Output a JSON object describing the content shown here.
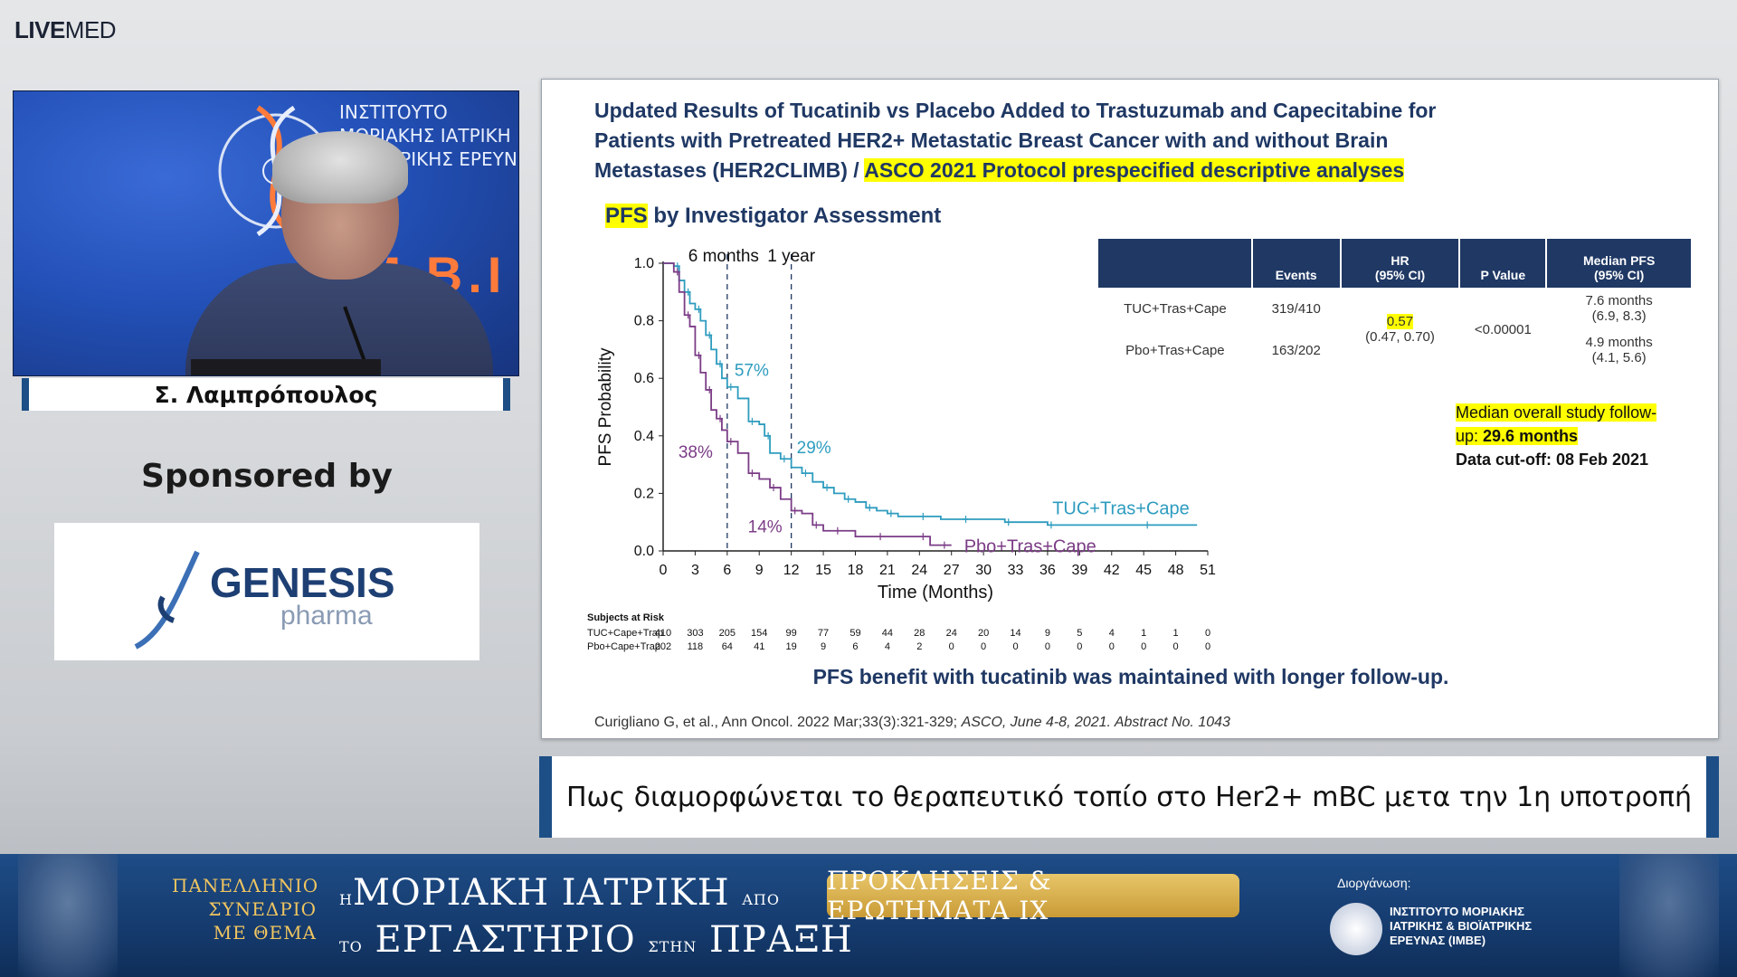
{
  "brand": {
    "bold": "LIVE",
    "light": "MED"
  },
  "speaker": {
    "name": "Σ. Λαμπρόπουλος",
    "backdrop_lines": [
      "ΙΝΣΤΙΤΟΥΤΟ",
      "ΜΟΡΙΑΚΗΣ ΙΑΤΡΙΚΗ",
      "ΒΙΟΪΑΤΡΙΚΗΣ ΕΡΕΥΝ"
    ],
    "backdrop_big": ".M.B.I"
  },
  "sponsor": {
    "label": "Sponsored by",
    "name": "GENESIS",
    "sub": "pharma"
  },
  "slide": {
    "title_line1": "Updated Results of Tucatinib vs Placebo Added to Trastuzumab and Capecitabine for",
    "title_line2": "Patients with Pretreated HER2+ Metastatic Breast Cancer with and without Brain",
    "title_line3_plain": "Metastases (HER2CLIMB) / ",
    "title_line3_highlight": "ASCO 2021 Protocol prespecified descriptive analyses",
    "pfs_highlight": "PFS",
    "pfs_rest": " by Investigator Assessment",
    "table": {
      "headers": [
        "",
        "Events",
        "HR\n(95% CI)",
        "P Value",
        "Median PFS\n(95% CI)"
      ],
      "h_events": "Events",
      "h_hr1": "HR",
      "h_hr2": "(95% CI)",
      "h_p": "P Value",
      "h_med1": "Median PFS",
      "h_med2": "(95% CI)",
      "row1_arm": "TUC+Tras+Cape",
      "row1_events": "319/410",
      "row2_arm": "Pbo+Tras+Cape",
      "row2_events": "163/202",
      "hr": "0.57",
      "hr_ci": "(0.47, 0.70)",
      "p": "<0.00001",
      "row1_med": "7.6 months",
      "row1_med_ci": "(6.9, 8.3)",
      "row2_med": "4.9 months",
      "row2_med_ci": "(4.1, 5.6)"
    },
    "note_hl1": "Median overall study follow-",
    "note_hl2": "up: ",
    "note_hl2_bold": "29.6 months",
    "note_line3": "Data cut-off: 08 Feb 2021",
    "benefit": "PFS benefit with tucatinib was maintained with longer follow-up.",
    "cite_plain": "Curigliano G, et al., Ann Oncol. 2022 Mar;33(3):321-329; ",
    "cite_italic": "ASCO, June 4-8, 2021. Abstract No. 1043"
  },
  "chart_data": {
    "type": "line",
    "xlabel": "Time (Months)",
    "ylabel": "PFS Probability",
    "xlim": [
      0,
      51
    ],
    "ylim": [
      0,
      1.0
    ],
    "xticks": [
      0,
      3,
      6,
      9,
      12,
      15,
      18,
      21,
      24,
      27,
      30,
      33,
      36,
      39,
      42,
      45,
      48,
      51
    ],
    "yticks": [
      0.0,
      0.2,
      0.4,
      0.6,
      0.8,
      1.0
    ],
    "reference_lines": [
      {
        "x": 6,
        "label": "6 months"
      },
      {
        "x": 12,
        "label": "1 year"
      }
    ],
    "annotations": [
      {
        "text": "57%",
        "series": "TUC+Tras+Cape"
      },
      {
        "text": "29%",
        "series": "TUC+Tras+Cape"
      },
      {
        "text": "38%",
        "series": "Pbo+Tras+Cape"
      },
      {
        "text": "14%",
        "series": "Pbo+Tras+Cape"
      }
    ],
    "series": [
      {
        "name": "TUC+Tras+Cape",
        "color": "#2e9cbf",
        "x": [
          0,
          1.0,
          1.5,
          2,
          2.5,
          3,
          3.5,
          4,
          4.5,
          5,
          5.5,
          6,
          7,
          8,
          9,
          9.5,
          10,
          11,
          12,
          13,
          14,
          15,
          16,
          17,
          18,
          19,
          20,
          21,
          22,
          24,
          26,
          28,
          30,
          32,
          34,
          36,
          40,
          45,
          50
        ],
        "y": [
          1.0,
          0.99,
          0.94,
          0.9,
          0.86,
          0.84,
          0.8,
          0.75,
          0.7,
          0.65,
          0.6,
          0.57,
          0.53,
          0.45,
          0.44,
          0.4,
          0.34,
          0.32,
          0.29,
          0.27,
          0.24,
          0.22,
          0.2,
          0.18,
          0.17,
          0.15,
          0.14,
          0.13,
          0.12,
          0.12,
          0.11,
          0.11,
          0.11,
          0.1,
          0.1,
          0.09,
          0.09,
          0.09,
          0.09
        ]
      },
      {
        "name": "Pbo+Tras+Cape",
        "color": "#7b3c86",
        "x": [
          0,
          1.0,
          1.5,
          2,
          2.5,
          3,
          3.5,
          4,
          4.5,
          5,
          5.5,
          6,
          7,
          8,
          9,
          10,
          11,
          12,
          13,
          14,
          15,
          16,
          18,
          20,
          22,
          24,
          25,
          26,
          27
        ],
        "y": [
          1.0,
          0.97,
          0.9,
          0.82,
          0.78,
          0.68,
          0.62,
          0.56,
          0.49,
          0.46,
          0.42,
          0.38,
          0.34,
          0.27,
          0.25,
          0.22,
          0.18,
          0.14,
          0.13,
          0.09,
          0.07,
          0.07,
          0.05,
          0.05,
          0.05,
          0.05,
          0.02,
          0.02,
          0.02
        ]
      }
    ],
    "risk_table": {
      "title": "Subjects at Risk",
      "x": [
        0,
        3,
        6,
        9,
        12,
        15,
        18,
        21,
        24,
        27,
        30,
        33,
        36,
        39,
        42,
        45,
        48,
        51
      ],
      "rows": [
        {
          "label": "TUC+Cape+Trap",
          "values": [
            410,
            303,
            205,
            154,
            99,
            77,
            59,
            44,
            28,
            24,
            20,
            14,
            9,
            5,
            4,
            1,
            1,
            0
          ]
        },
        {
          "label": "Pbo+Cape+Trap",
          "values": [
            202,
            118,
            64,
            41,
            19,
            9,
            6,
            4,
            2,
            0,
            0,
            0,
            0,
            0,
            0,
            0,
            0,
            0
          ]
        }
      ]
    }
  },
  "subtitle": "Πως διαμορφώνεται το θεραπευτικό τοπίο στο Her2+ mBC μετα την 1η υποτροπή",
  "banner": {
    "left_l1": "ΠΑΝΕΛΛΗΝΙΟ",
    "left_l2": "ΣΥΝΕΔΡΙΟ",
    "left_l3": "ΜΕ ΘΕΜΑ",
    "mid_pre1": "Η",
    "mid_main1": "ΜΟΡΙΑΚΗ ΙΑΤΡΙΚΗ",
    "mid_small1": "ΑΠΟ",
    "mid_pre2": "ΤΟ",
    "mid_main2": "ΕΡΓΑΣΤΗΡΙΟ",
    "mid_small2": "ΣΤΗΝ",
    "mid_main2b": "ΠΡΑΞΗ",
    "pill": "ΠΡΟΚΛΗΣΕΙΣ & ΕΡΩΤΗΜΑΤΑ IX",
    "org_label": "Διοργάνωση:",
    "org_l1": "ΙΝΣΤΙΤΟΥΤΟ ΜΟΡΙΑΚΗΣ",
    "org_l2": "ΙΑΤΡΙΚΗΣ & ΒΙΟΪΑΤΡΙΚΗΣ",
    "org_l3": "ΕΡΕΥΝΑΣ (IMBE)"
  },
  "colors": {
    "navy": "#1f3864",
    "teal": "#2e9cbf",
    "purple": "#7b3c86",
    "highlight": "#ffff00",
    "banner": "#1e4c86",
    "gold": "#c99b36"
  }
}
